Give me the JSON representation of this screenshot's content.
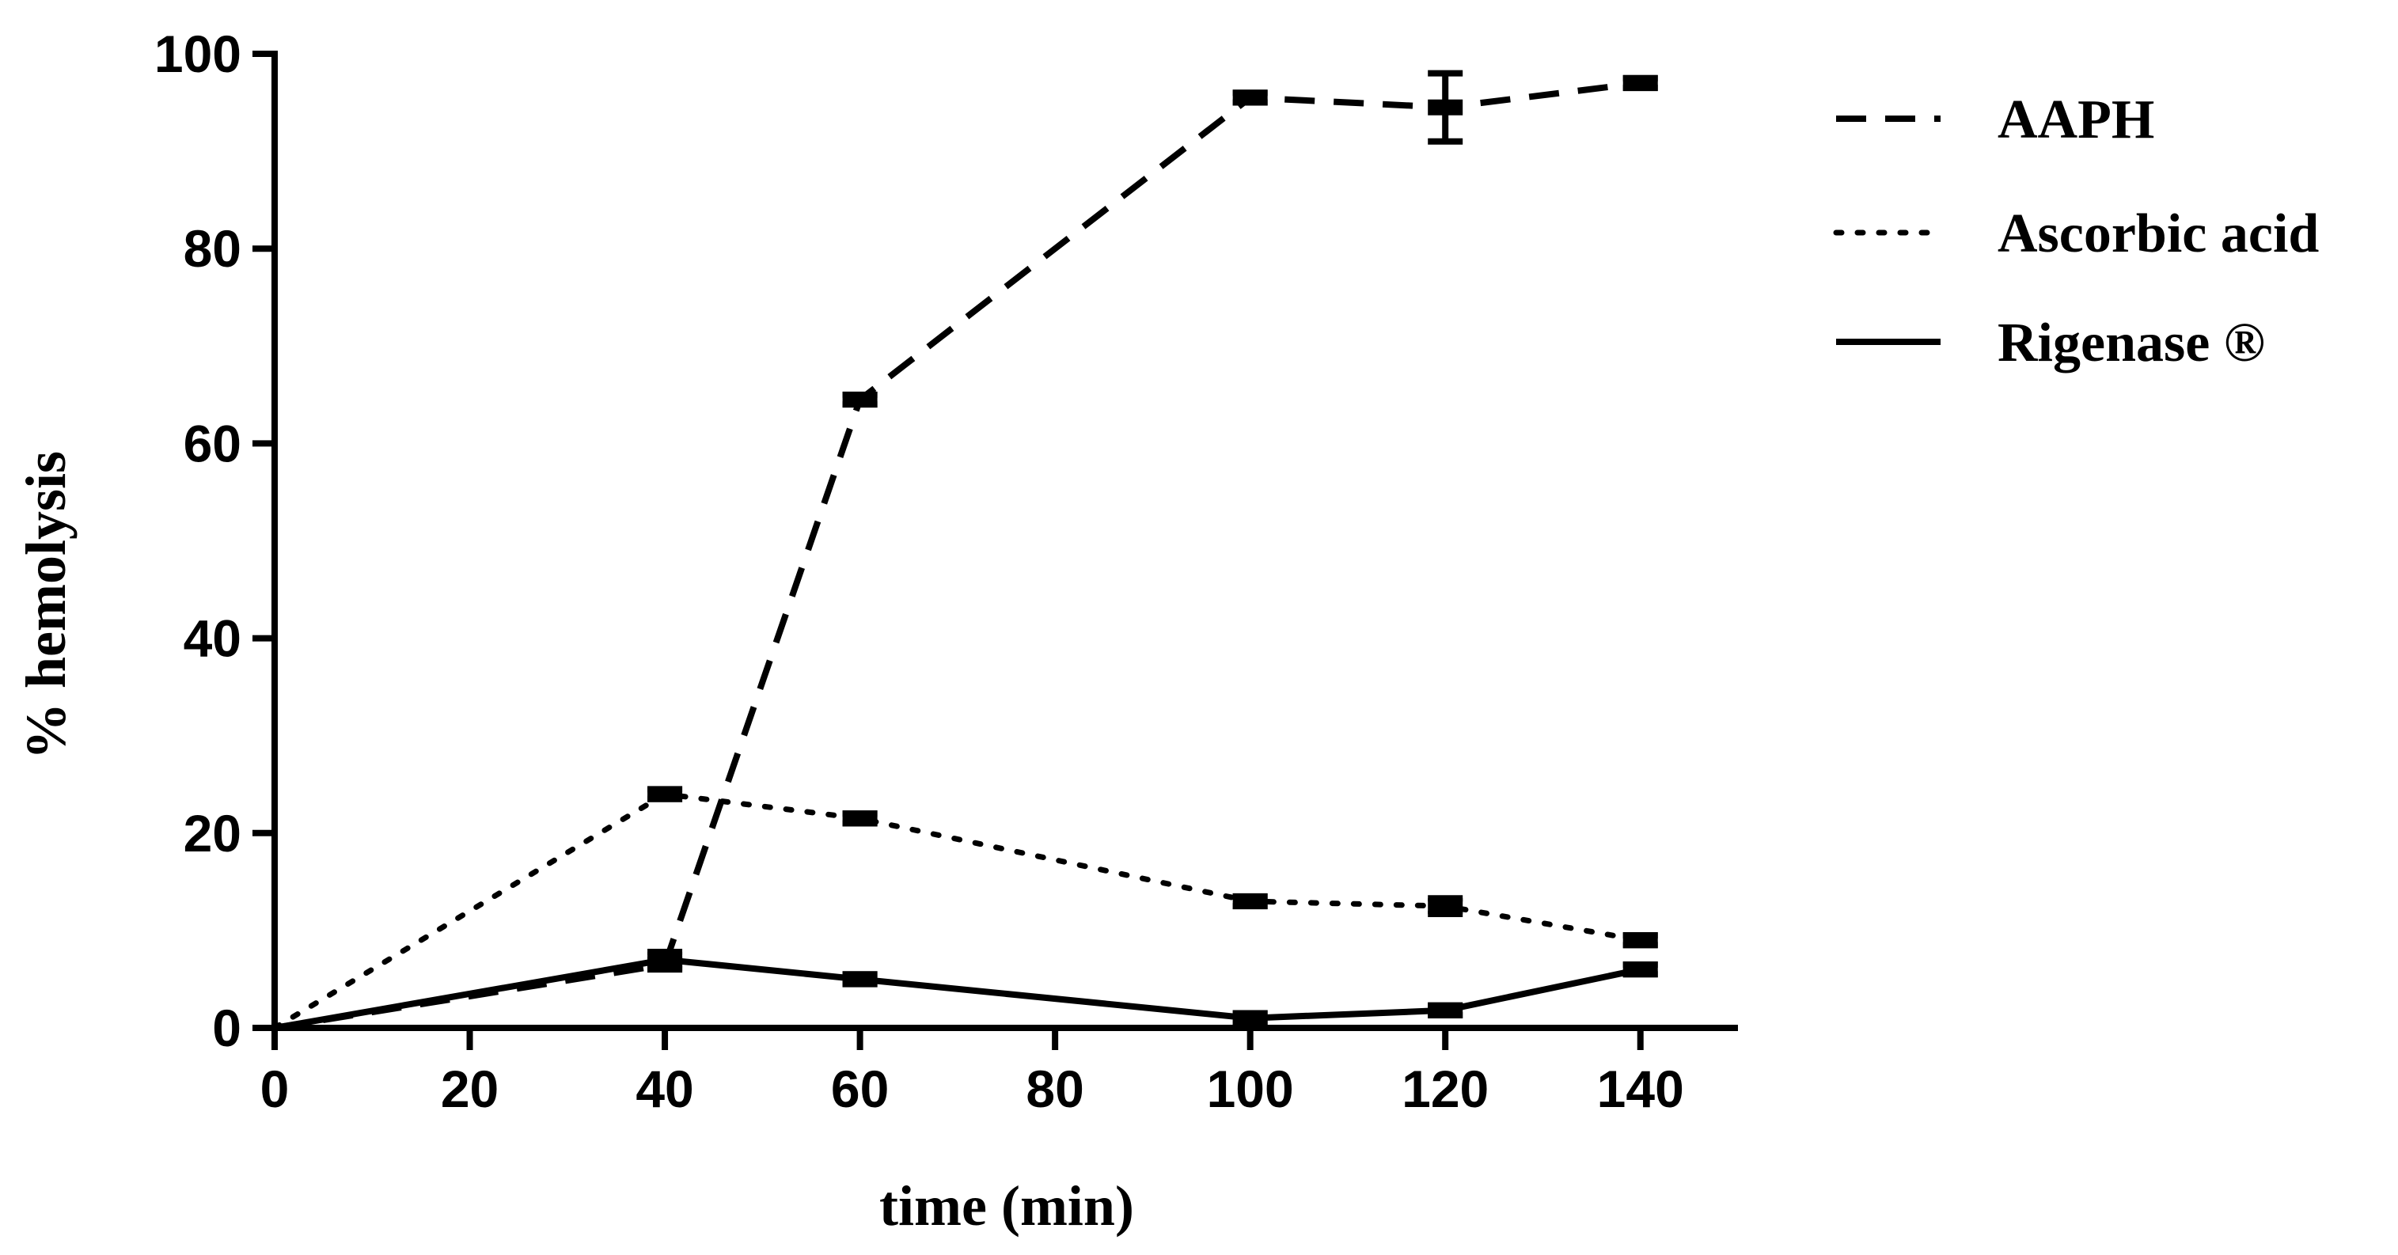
{
  "chart_data": {
    "type": "line",
    "title": "",
    "xlabel": "time (min)",
    "ylabel": "% hemolysis",
    "xlim": [
      0,
      150
    ],
    "ylim": [
      0,
      100
    ],
    "xticks": [
      0,
      20,
      40,
      60,
      80,
      100,
      120,
      140
    ],
    "yticks": [
      0,
      20,
      40,
      60,
      80,
      100
    ],
    "legend_position": "right",
    "series": [
      {
        "name": "AAPH",
        "style": "dashed",
        "x": [
          0,
          40,
          60,
          100,
          120,
          140
        ],
        "y": [
          0,
          6.5,
          64.5,
          95.5,
          94.5,
          97
        ],
        "yerr": [
          0,
          0.5,
          0.5,
          0.5,
          3.5,
          0.5
        ]
      },
      {
        "name": "Ascorbic acid",
        "style": "dotted",
        "x": [
          0,
          40,
          60,
          100,
          120,
          140
        ],
        "y": [
          0,
          24,
          21.5,
          13,
          12.5,
          9
        ],
        "yerr": [
          0,
          0.5,
          0.5,
          0.5,
          0.8,
          0.5
        ]
      },
      {
        "name": "Rigenase ®",
        "style": "solid",
        "x": [
          0,
          40,
          60,
          100,
          120,
          140
        ],
        "y": [
          0,
          7,
          5,
          1,
          1.8,
          6
        ],
        "yerr": [
          0,
          0.8,
          0.5,
          0.5,
          0.5,
          0.5
        ]
      }
    ]
  }
}
